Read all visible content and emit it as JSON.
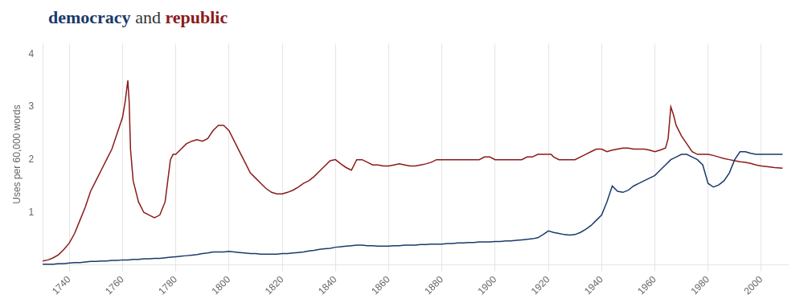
{
  "chart_data": {
    "type": "line",
    "title": "democracy and republic",
    "ylabel": "Uses per 60,000 words",
    "xlim": [
      1730,
      2010
    ],
    "xticks": [
      1740,
      1760,
      1780,
      1800,
      1820,
      1840,
      1860,
      1880,
      1900,
      1920,
      1940,
      1960,
      1980,
      2000
    ],
    "ylim": [
      0,
      4.2
    ],
    "yticks": [
      1,
      2,
      3,
      4
    ],
    "grid": "x",
    "series": [
      {
        "name": "democracy",
        "color": "#1a3a6b",
        "x": [
          1730,
          1732,
          1734,
          1736,
          1738,
          1740,
          1742,
          1744,
          1746,
          1748,
          1750,
          1752,
          1754,
          1756,
          1758,
          1760,
          1762,
          1764,
          1766,
          1768,
          1770,
          1772,
          1774,
          1776,
          1778,
          1780,
          1782,
          1784,
          1786,
          1788,
          1790,
          1792,
          1794,
          1796,
          1798,
          1800,
          1802,
          1804,
          1806,
          1808,
          1810,
          1812,
          1814,
          1816,
          1818,
          1820,
          1822,
          1824,
          1826,
          1828,
          1830,
          1832,
          1834,
          1836,
          1838,
          1840,
          1842,
          1844,
          1846,
          1848,
          1850,
          1852,
          1854,
          1856,
          1858,
          1860,
          1862,
          1864,
          1866,
          1868,
          1870,
          1872,
          1874,
          1876,
          1878,
          1880,
          1882,
          1884,
          1886,
          1888,
          1890,
          1892,
          1894,
          1896,
          1898,
          1900,
          1902,
          1904,
          1906,
          1908,
          1910,
          1912,
          1914,
          1916,
          1918,
          1920,
          1922,
          1924,
          1926,
          1928,
          1930,
          1932,
          1934,
          1936,
          1938,
          1940,
          1942,
          1944,
          1946,
          1948,
          1950,
          1952,
          1954,
          1956,
          1958,
          1960,
          1962,
          1964,
          1966,
          1968,
          1970,
          1972,
          1974,
          1976,
          1978,
          1980,
          1982,
          1984,
          1986,
          1988,
          1990,
          1992,
          1994,
          1996,
          1998,
          2000,
          2002,
          2005,
          2008
        ],
        "values": [
          0.02,
          0.02,
          0.02,
          0.03,
          0.03,
          0.04,
          0.05,
          0.05,
          0.06,
          0.07,
          0.07,
          0.08,
          0.08,
          0.09,
          0.09,
          0.1,
          0.1,
          0.11,
          0.11,
          0.12,
          0.12,
          0.13,
          0.13,
          0.14,
          0.15,
          0.16,
          0.17,
          0.18,
          0.19,
          0.2,
          0.22,
          0.23,
          0.25,
          0.25,
          0.25,
          0.26,
          0.25,
          0.24,
          0.23,
          0.22,
          0.22,
          0.21,
          0.21,
          0.21,
          0.21,
          0.22,
          0.22,
          0.23,
          0.24,
          0.25,
          0.27,
          0.28,
          0.3,
          0.31,
          0.32,
          0.34,
          0.35,
          0.36,
          0.37,
          0.38,
          0.38,
          0.37,
          0.37,
          0.36,
          0.36,
          0.36,
          0.37,
          0.37,
          0.38,
          0.38,
          0.38,
          0.39,
          0.39,
          0.4,
          0.4,
          0.4,
          0.41,
          0.41,
          0.42,
          0.42,
          0.43,
          0.43,
          0.44,
          0.44,
          0.44,
          0.45,
          0.45,
          0.46,
          0.46,
          0.47,
          0.48,
          0.49,
          0.5,
          0.52,
          0.58,
          0.65,
          0.62,
          0.6,
          0.58,
          0.57,
          0.58,
          0.62,
          0.68,
          0.75,
          0.85,
          0.95,
          1.2,
          1.5,
          1.4,
          1.38,
          1.42,
          1.5,
          1.55,
          1.6,
          1.65,
          1.7,
          1.8,
          1.9,
          2.0,
          2.05,
          2.1,
          2.1,
          2.05,
          2.0,
          1.9,
          1.55,
          1.48,
          1.52,
          1.6,
          1.75,
          2.0,
          2.15,
          2.15,
          2.12,
          2.1,
          2.1,
          2.1,
          2.1,
          2.1
        ]
      },
      {
        "name": "republic",
        "color": "#8b1a1a",
        "x": [
          1730,
          1732,
          1734,
          1736,
          1738,
          1740,
          1742,
          1744,
          1746,
          1748,
          1750,
          1752,
          1754,
          1756,
          1758,
          1760,
          1761,
          1762,
          1762.5,
          1763,
          1764,
          1766,
          1768,
          1770,
          1772,
          1774,
          1776,
          1777,
          1778,
          1779,
          1780,
          1782,
          1784,
          1786,
          1788,
          1790,
          1792,
          1794,
          1795,
          1796,
          1797,
          1798,
          1799,
          1800,
          1802,
          1804,
          1806,
          1808,
          1810,
          1812,
          1814,
          1816,
          1818,
          1820,
          1822,
          1824,
          1826,
          1828,
          1830,
          1832,
          1834,
          1836,
          1838,
          1840,
          1842,
          1844,
          1846,
          1848,
          1850,
          1852,
          1854,
          1856,
          1858,
          1860,
          1862,
          1864,
          1866,
          1868,
          1870,
          1872,
          1874,
          1876,
          1878,
          1880,
          1882,
          1884,
          1886,
          1888,
          1890,
          1892,
          1894,
          1896,
          1898,
          1900,
          1902,
          1904,
          1906,
          1908,
          1910,
          1912,
          1914,
          1916,
          1918,
          1920,
          1921,
          1922,
          1924,
          1926,
          1928,
          1930,
          1932,
          1934,
          1936,
          1938,
          1940,
          1942,
          1944,
          1946,
          1948,
          1950,
          1952,
          1954,
          1956,
          1958,
          1960,
          1962,
          1964,
          1965,
          1966,
          1967,
          1968,
          1970,
          1972,
          1974,
          1976,
          1978,
          1980,
          1982,
          1984,
          1986,
          1988,
          1990,
          1992,
          1994,
          1996,
          1998,
          2000,
          2002,
          2005,
          2008
        ],
        "values": [
          0.08,
          0.1,
          0.14,
          0.2,
          0.3,
          0.42,
          0.6,
          0.85,
          1.1,
          1.4,
          1.6,
          1.8,
          2.0,
          2.2,
          2.5,
          2.8,
          3.1,
          3.5,
          3.1,
          2.2,
          1.6,
          1.2,
          1.0,
          0.95,
          0.9,
          0.95,
          1.2,
          1.6,
          2.0,
          2.1,
          2.1,
          2.2,
          2.3,
          2.35,
          2.38,
          2.35,
          2.4,
          2.55,
          2.6,
          2.65,
          2.65,
          2.65,
          2.6,
          2.55,
          2.35,
          2.15,
          1.95,
          1.75,
          1.65,
          1.55,
          1.45,
          1.38,
          1.35,
          1.35,
          1.38,
          1.42,
          1.48,
          1.55,
          1.6,
          1.68,
          1.78,
          1.88,
          1.98,
          2.0,
          1.92,
          1.85,
          1.8,
          2.0,
          2.0,
          1.95,
          1.9,
          1.9,
          1.88,
          1.88,
          1.9,
          1.92,
          1.9,
          1.88,
          1.88,
          1.9,
          1.92,
          1.95,
          2.0,
          2.0,
          2.0,
          2.0,
          2.0,
          2.0,
          2.0,
          2.0,
          2.0,
          2.05,
          2.05,
          2.0,
          2.0,
          2.0,
          2.0,
          2.0,
          2.0,
          2.05,
          2.05,
          2.1,
          2.1,
          2.1,
          2.1,
          2.05,
          2.0,
          2.0,
          2.0,
          2.0,
          2.05,
          2.1,
          2.15,
          2.2,
          2.2,
          2.15,
          2.18,
          2.2,
          2.22,
          2.22,
          2.2,
          2.2,
          2.2,
          2.18,
          2.15,
          2.18,
          2.22,
          2.4,
          3.0,
          2.85,
          2.65,
          2.45,
          2.3,
          2.15,
          2.1,
          2.1,
          2.1,
          2.08,
          2.05,
          2.02,
          2.0,
          1.98,
          1.96,
          1.95,
          1.93,
          1.9,
          1.88,
          1.87,
          1.85,
          1.84
        ]
      }
    ]
  }
}
